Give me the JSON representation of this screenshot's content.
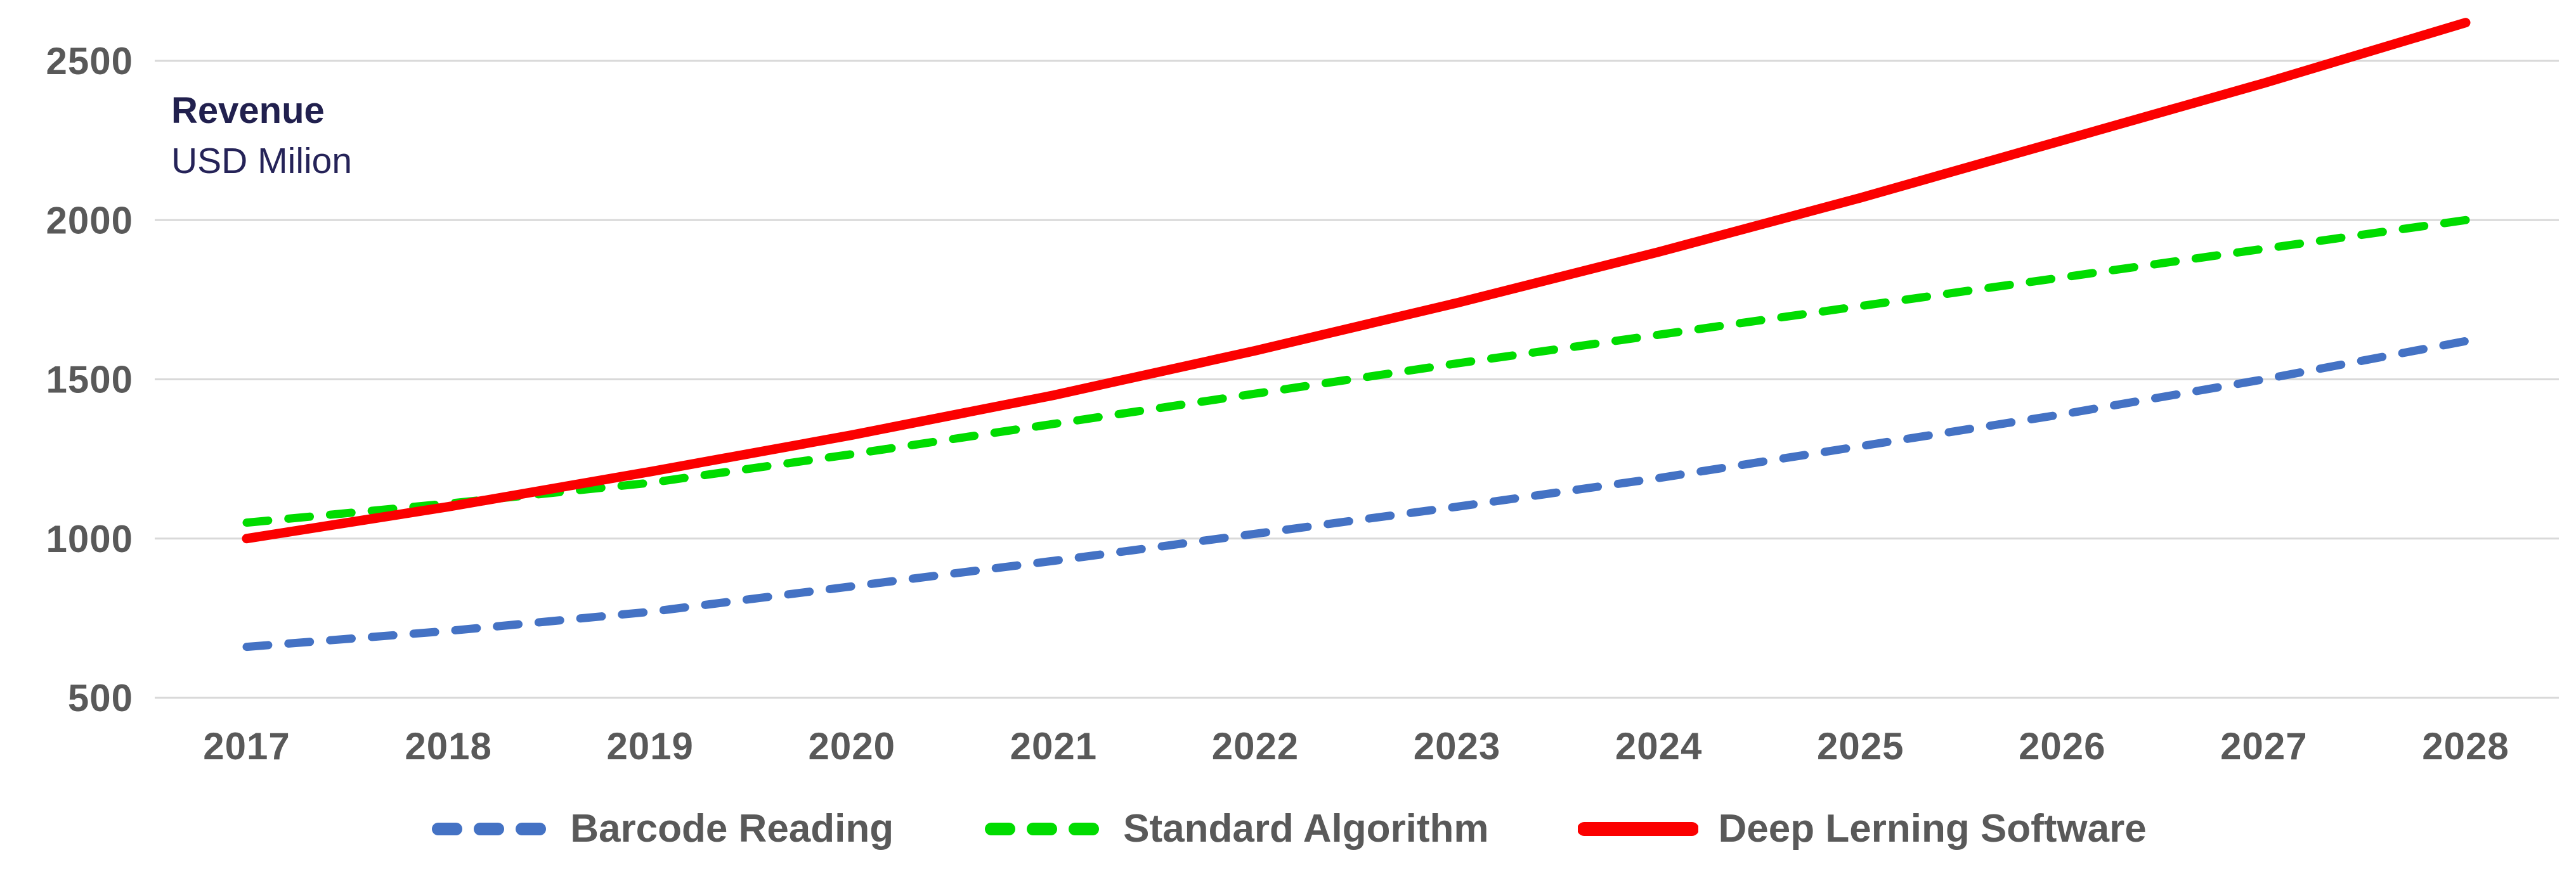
{
  "chart_data": {
    "type": "line",
    "title": "Revenue",
    "subtitle": "USD Milion",
    "categories": [
      "2017",
      "2018",
      "2019",
      "2020",
      "2021",
      "2022",
      "2023",
      "2024",
      "2025",
      "2026",
      "2027",
      "2028"
    ],
    "yticks": [
      500,
      1000,
      1500,
      2000,
      2500
    ],
    "ylim": [
      500,
      2500
    ],
    "grid": "horizontal",
    "legend_position": "bottom",
    "series": [
      {
        "name": "Barcode Reading",
        "color": "#4472c4",
        "style": "dashed",
        "values": [
          660,
          710,
          770,
          850,
          930,
          1015,
          1100,
          1190,
          1290,
          1390,
          1500,
          1620
        ]
      },
      {
        "name": "Standard Algorithm",
        "color": "#00dc00",
        "style": "dashed",
        "values": [
          1050,
          1110,
          1175,
          1265,
          1360,
          1455,
          1550,
          1640,
          1730,
          1820,
          1910,
          2000
        ]
      },
      {
        "name": "Deep Lerning Software",
        "color": "#fb0000",
        "style": "solid",
        "values": [
          1000,
          1100,
          1210,
          1325,
          1450,
          1590,
          1740,
          1900,
          2070,
          2250,
          2430,
          2620
        ]
      }
    ],
    "colors": {
      "gridline": "#d9d9d9",
      "axis_text": "#595959",
      "title_text": "#21204e"
    }
  }
}
